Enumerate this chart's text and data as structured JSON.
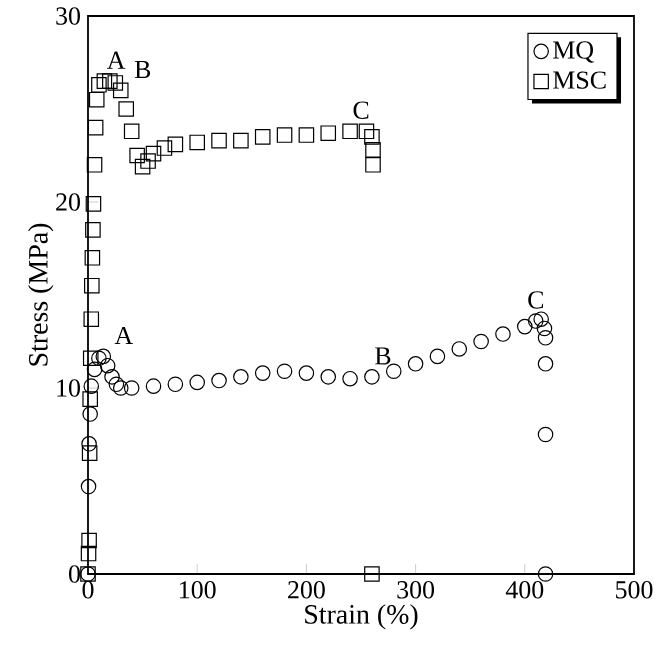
{
  "chart_data": {
    "type": "scatter",
    "xlabel": "Strain (%)",
    "ylabel": "Stress (MPa)",
    "xlim": [
      0,
      500
    ],
    "ylim": [
      0,
      30
    ],
    "xticks": [
      0,
      100,
      200,
      300,
      400,
      500
    ],
    "yticks": [
      0,
      10,
      20,
      30
    ],
    "legend": "top right",
    "series": [
      {
        "name": "MQ",
        "color": "#000000",
        "marker": "circle",
        "x": [
          0,
          0.5,
          1,
          2,
          3,
          6,
          10,
          14,
          18,
          22,
          26,
          30,
          40,
          60,
          80,
          100,
          120,
          140,
          160,
          180,
          200,
          220,
          240,
          260,
          280,
          300,
          320,
          340,
          360,
          380,
          400,
          410,
          415,
          418,
          419,
          419,
          419,
          419
        ],
        "values": [
          0,
          4.7,
          7,
          8.6,
          10.1,
          11,
          11.6,
          11.7,
          11.2,
          10.6,
          10.2,
          10,
          10,
          10.1,
          10.2,
          10.3,
          10.4,
          10.6,
          10.8,
          10.9,
          10.8,
          10.6,
          10.5,
          10.6,
          10.9,
          11.3,
          11.7,
          12.1,
          12.5,
          12.9,
          13.3,
          13.6,
          13.7,
          13.2,
          12.7,
          11.3,
          7.5,
          0
        ]
      },
      {
        "name": "MSC",
        "color": "#000000",
        "marker": "square",
        "x": [
          0,
          0.5,
          1,
          1.5,
          2,
          2.5,
          3,
          3.5,
          4,
          4.5,
          5,
          6,
          7,
          8,
          10,
          15,
          20,
          25,
          30,
          35,
          40,
          45,
          50,
          55,
          60,
          70,
          80,
          100,
          120,
          140,
          160,
          180,
          200,
          220,
          240,
          255,
          260,
          261,
          261,
          260
        ],
        "values": [
          0,
          1.1,
          1.8,
          6.5,
          9.4,
          11.6,
          13.7,
          15.5,
          17,
          18.5,
          19.9,
          22,
          24,
          25.5,
          26.3,
          26.5,
          26.5,
          26.4,
          26,
          25,
          23.8,
          22.5,
          21.9,
          22.2,
          22.6,
          22.9,
          23.1,
          23.2,
          23.3,
          23.3,
          23.5,
          23.6,
          23.6,
          23.7,
          23.8,
          23.8,
          23.5,
          22.8,
          22,
          0
        ]
      }
    ],
    "annotations": [
      {
        "text": "A",
        "x": 15,
        "y": 26.5
      },
      {
        "text": "B",
        "x": 40,
        "y": 23.8
      },
      {
        "text": "C",
        "x": 240,
        "y": 23.8
      },
      {
        "text": "A",
        "x": 22,
        "y": 10.6
      },
      {
        "text": "B",
        "x": 260,
        "y": 10.6
      },
      {
        "text": "C",
        "x": 400,
        "y": 13.3
      }
    ]
  }
}
